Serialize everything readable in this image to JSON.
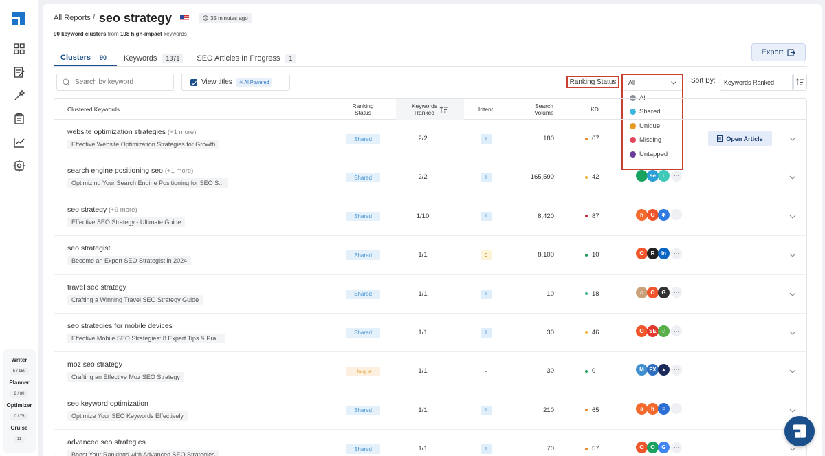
{
  "sidebar": {
    "icons": [
      "logo-icon",
      "dashboard-icon",
      "writer-icon",
      "magic-wand-icon",
      "clipboard-icon",
      "chart-icon",
      "settings-icon"
    ],
    "quotas": [
      {
        "label": "Writer",
        "value": "5 / 150"
      },
      {
        "label": "Planner",
        "value": "2 / 80"
      },
      {
        "label": "Optimizer",
        "value": "0 / 75"
      },
      {
        "label": "Cruise",
        "value": "11"
      }
    ]
  },
  "header": {
    "breadcrumb": "All Reports /",
    "title": "seo strategy",
    "time_ago": "35 minutes ago",
    "subline": {
      "clusters": "90 keyword clusters",
      "from": " from ",
      "impact": "198 high-impact",
      "keywords": " keywords"
    }
  },
  "tabs": [
    {
      "label": "Clusters",
      "count": "90",
      "active": true
    },
    {
      "label": "Keywords",
      "count": "1371",
      "active": false
    },
    {
      "label": "SEO Articles In Progress",
      "count": "1",
      "active": false
    }
  ],
  "toolbar": {
    "export_label": "Export",
    "search_placeholder": "Search by keyword",
    "view_titles_label": "View titles",
    "ai_badge": "AI Powered",
    "ranking_status_label": "Ranking Status",
    "ranking_selected": "All",
    "ranking_options": [
      {
        "label": "All",
        "color": "#8a8f98"
      },
      {
        "label": "Shared",
        "color": "#3fb6e0"
      },
      {
        "label": "Unique",
        "color": "#e89b22"
      },
      {
        "label": "Missing",
        "color": "#e0475a"
      },
      {
        "label": "Untapped",
        "color": "#6a3c9b"
      }
    ],
    "sort_by_label": "Sort By:",
    "sort_by_value": "Keywords Ranked"
  },
  "table": {
    "headers": {
      "keywords": "Clustered Keywords",
      "ranking_status": [
        "Ranking",
        "Status"
      ],
      "keywords_ranked": [
        "Keywords",
        "Ranked"
      ],
      "intent": "Intent",
      "search_volume": [
        "Search",
        "Volume"
      ],
      "kd": "KD"
    },
    "open_article_label": "Open Article",
    "rows": [
      {
        "keyword": "website optimization strategies",
        "more": "(+1 more)",
        "article": "Effective Website Optimization Strategies for Growth",
        "status": "Shared",
        "ranked": "2/2",
        "intent": "I",
        "volume": "180",
        "kd": "67",
        "kd_color": "#e88a2c",
        "competitors": [],
        "open_article": true
      },
      {
        "keyword": "search engine positioning seo",
        "more": "(+1 more)",
        "article": "Optimizing Your Search Engine Positioning for SEO S...",
        "status": "Shared",
        "ranked": "2/2",
        "intent": "I",
        "volume": "165,590",
        "kd": "42",
        "kd_color": "#f0b02a",
        "competitors": [
          {
            "t": "",
            "c": "#1aa35f"
          },
          {
            "t": "se",
            "c": "#2b9fd6"
          },
          {
            "t": "↓",
            "c": "#3ec9b8"
          }
        ],
        "open_article": false
      },
      {
        "keyword": "seo strategy",
        "more": "(+9 more)",
        "article": "Effective SEO Strategy - Ultimate Guide",
        "status": "Shared",
        "ranked": "1/10",
        "intent": "I",
        "volume": "8,420",
        "kd": "87",
        "kd_color": "#c9283a",
        "competitors": [
          {
            "t": "h",
            "c": "#f26a2e"
          },
          {
            "t": "O",
            "c": "#f0552b"
          },
          {
            "t": "✱",
            "c": "#2f7be0"
          }
        ],
        "open_article": false
      },
      {
        "keyword": "seo strategist",
        "more": "",
        "article": "Become an Expert SEO Strategist in 2024",
        "status": "Shared",
        "ranked": "1/1",
        "intent": "C",
        "volume": "8,100",
        "kd": "10",
        "kd_color": "#1e9a5a",
        "competitors": [
          {
            "t": "O",
            "c": "#f0552b"
          },
          {
            "t": "R",
            "c": "#222"
          },
          {
            "t": "in",
            "c": "#0a66c2"
          }
        ],
        "open_article": false
      },
      {
        "keyword": "travel seo strategy",
        "more": "",
        "article": "Crafting a Winning Travel SEO Strategy Guide",
        "status": "Shared",
        "ranked": "1/1",
        "intent": "I",
        "volume": "10",
        "kd": "18",
        "kd_color": "#36b37e",
        "competitors": [
          {
            "t": "☺",
            "c": "#c9a27c"
          },
          {
            "t": "O",
            "c": "#f0552b"
          },
          {
            "t": "G",
            "c": "#333"
          }
        ],
        "open_article": false
      },
      {
        "keyword": "seo strategies for mobile devices",
        "more": "",
        "article": "Effective Mobile SEO Strategies: 8 Expert Tips & Pra...",
        "status": "Shared",
        "ranked": "1/1",
        "intent": "I",
        "volume": "30",
        "kd": "46",
        "kd_color": "#f0b02a",
        "competitors": [
          {
            "t": "O",
            "c": "#f0552b"
          },
          {
            "t": "SE",
            "c": "#e23a2c"
          },
          {
            "t": "♧",
            "c": "#59b04a"
          }
        ],
        "open_article": false
      },
      {
        "keyword": "moz seo strategy",
        "more": "",
        "article": "Crafting an Effective Moz SEO Strategy",
        "status": "Unique",
        "ranked": "1/1",
        "intent": "-",
        "volume": "30",
        "kd": "0",
        "kd_color": "#1e9a5a",
        "competitors": [
          {
            "t": "M",
            "c": "#3f8fd1"
          },
          {
            "t": "FX",
            "c": "#2f6fbf"
          },
          {
            "t": "▲",
            "c": "#1b2a5a"
          }
        ],
        "open_article": false
      },
      {
        "keyword": "seo keyword optimization",
        "more": "",
        "article": "Optimize Your SEO Keywords Effectively",
        "status": "Shared",
        "ranked": "1/1",
        "intent": "I",
        "volume": "210",
        "kd": "65",
        "kd_color": "#e88a2c",
        "competitors": [
          {
            "t": "a",
            "c": "#f26a2e"
          },
          {
            "t": "h",
            "c": "#f26a2e"
          },
          {
            "t": "≡",
            "c": "#2b6fd6"
          }
        ],
        "open_article": false
      },
      {
        "keyword": "advanced seo strategies",
        "more": "",
        "article": "Boost Your Rankings with Advanced SEO Strategies",
        "status": "Shared",
        "ranked": "1/1",
        "intent": "I",
        "volume": "70",
        "kd": "57",
        "kd_color": "#e88a2c",
        "competitors": [
          {
            "t": "O",
            "c": "#f0552b"
          },
          {
            "t": "O",
            "c": "#1aa35f"
          },
          {
            "t": "G",
            "c": "#4285f4"
          }
        ],
        "open_article": false
      }
    ]
  }
}
